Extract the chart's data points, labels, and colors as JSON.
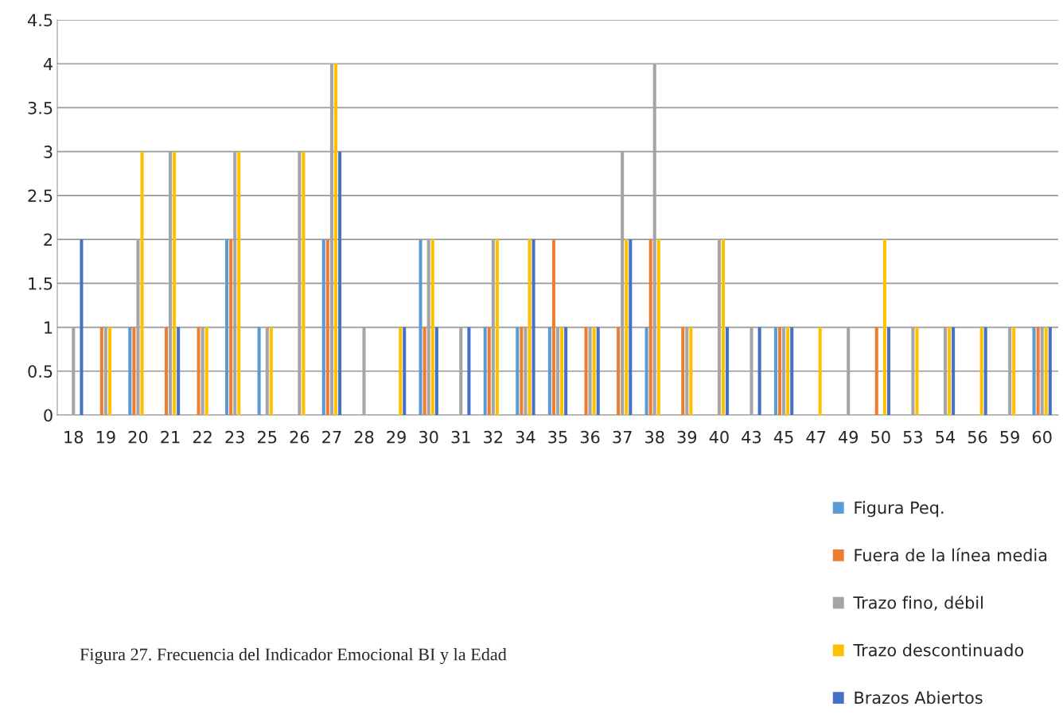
{
  "chart_data": {
    "type": "bar",
    "categories": [
      "18",
      "19",
      "20",
      "21",
      "22",
      "23",
      "25",
      "26",
      "27",
      "28",
      "29",
      "30",
      "31",
      "32",
      "34",
      "35",
      "36",
      "37",
      "38",
      "39",
      "40",
      "43",
      "45",
      "47",
      "49",
      "50",
      "53",
      "54",
      "56",
      "59",
      "60"
    ],
    "series": [
      {
        "name": "Figura Peq.",
        "color": "#5b9bd5",
        "values": [
          null,
          null,
          1,
          null,
          null,
          2,
          1,
          null,
          2,
          null,
          null,
          2,
          null,
          1,
          1,
          1,
          null,
          null,
          1,
          null,
          null,
          null,
          1,
          null,
          null,
          null,
          null,
          null,
          null,
          null,
          1
        ]
      },
      {
        "name": "Fuera de la línea media",
        "color": "#ed7d31",
        "values": [
          null,
          1,
          1,
          1,
          1,
          2,
          null,
          null,
          2,
          null,
          null,
          1,
          null,
          1,
          1,
          2,
          1,
          1,
          2,
          1,
          null,
          null,
          1,
          null,
          null,
          1,
          null,
          null,
          null,
          null,
          1
        ]
      },
      {
        "name": "Trazo fino, débil",
        "color": "#a5a5a5",
        "values": [
          1,
          1,
          2,
          3,
          1,
          3,
          1,
          3,
          4,
          1,
          null,
          2,
          1,
          2,
          1,
          1,
          1,
          3,
          4,
          1,
          2,
          1,
          1,
          null,
          1,
          null,
          1,
          1,
          null,
          1,
          1
        ]
      },
      {
        "name": "Trazo descontinuado",
        "color": "#ffc000",
        "values": [
          null,
          1,
          3,
          3,
          1,
          3,
          1,
          3,
          4,
          null,
          1,
          2,
          null,
          2,
          2,
          1,
          1,
          2,
          2,
          1,
          2,
          null,
          1,
          1,
          null,
          2,
          1,
          1,
          1,
          1,
          1
        ]
      },
      {
        "name": "Brazos Abiertos",
        "color": "#4472c4",
        "values": [
          2,
          null,
          null,
          1,
          null,
          null,
          null,
          null,
          3,
          null,
          1,
          1,
          1,
          null,
          2,
          1,
          1,
          2,
          null,
          null,
          1,
          1,
          1,
          null,
          null,
          1,
          null,
          1,
          1,
          null,
          1
        ]
      }
    ],
    "ylim": [
      0,
      4.5
    ],
    "yticks": [
      0,
      0.5,
      1,
      1.5,
      2,
      2.5,
      3,
      3.5,
      4,
      4.5
    ],
    "grid": "y",
    "legend": "bottom right",
    "annotations": [
      "Figura 27. Frecuencia del Indicador Emocional BI y la Edad"
    ]
  }
}
